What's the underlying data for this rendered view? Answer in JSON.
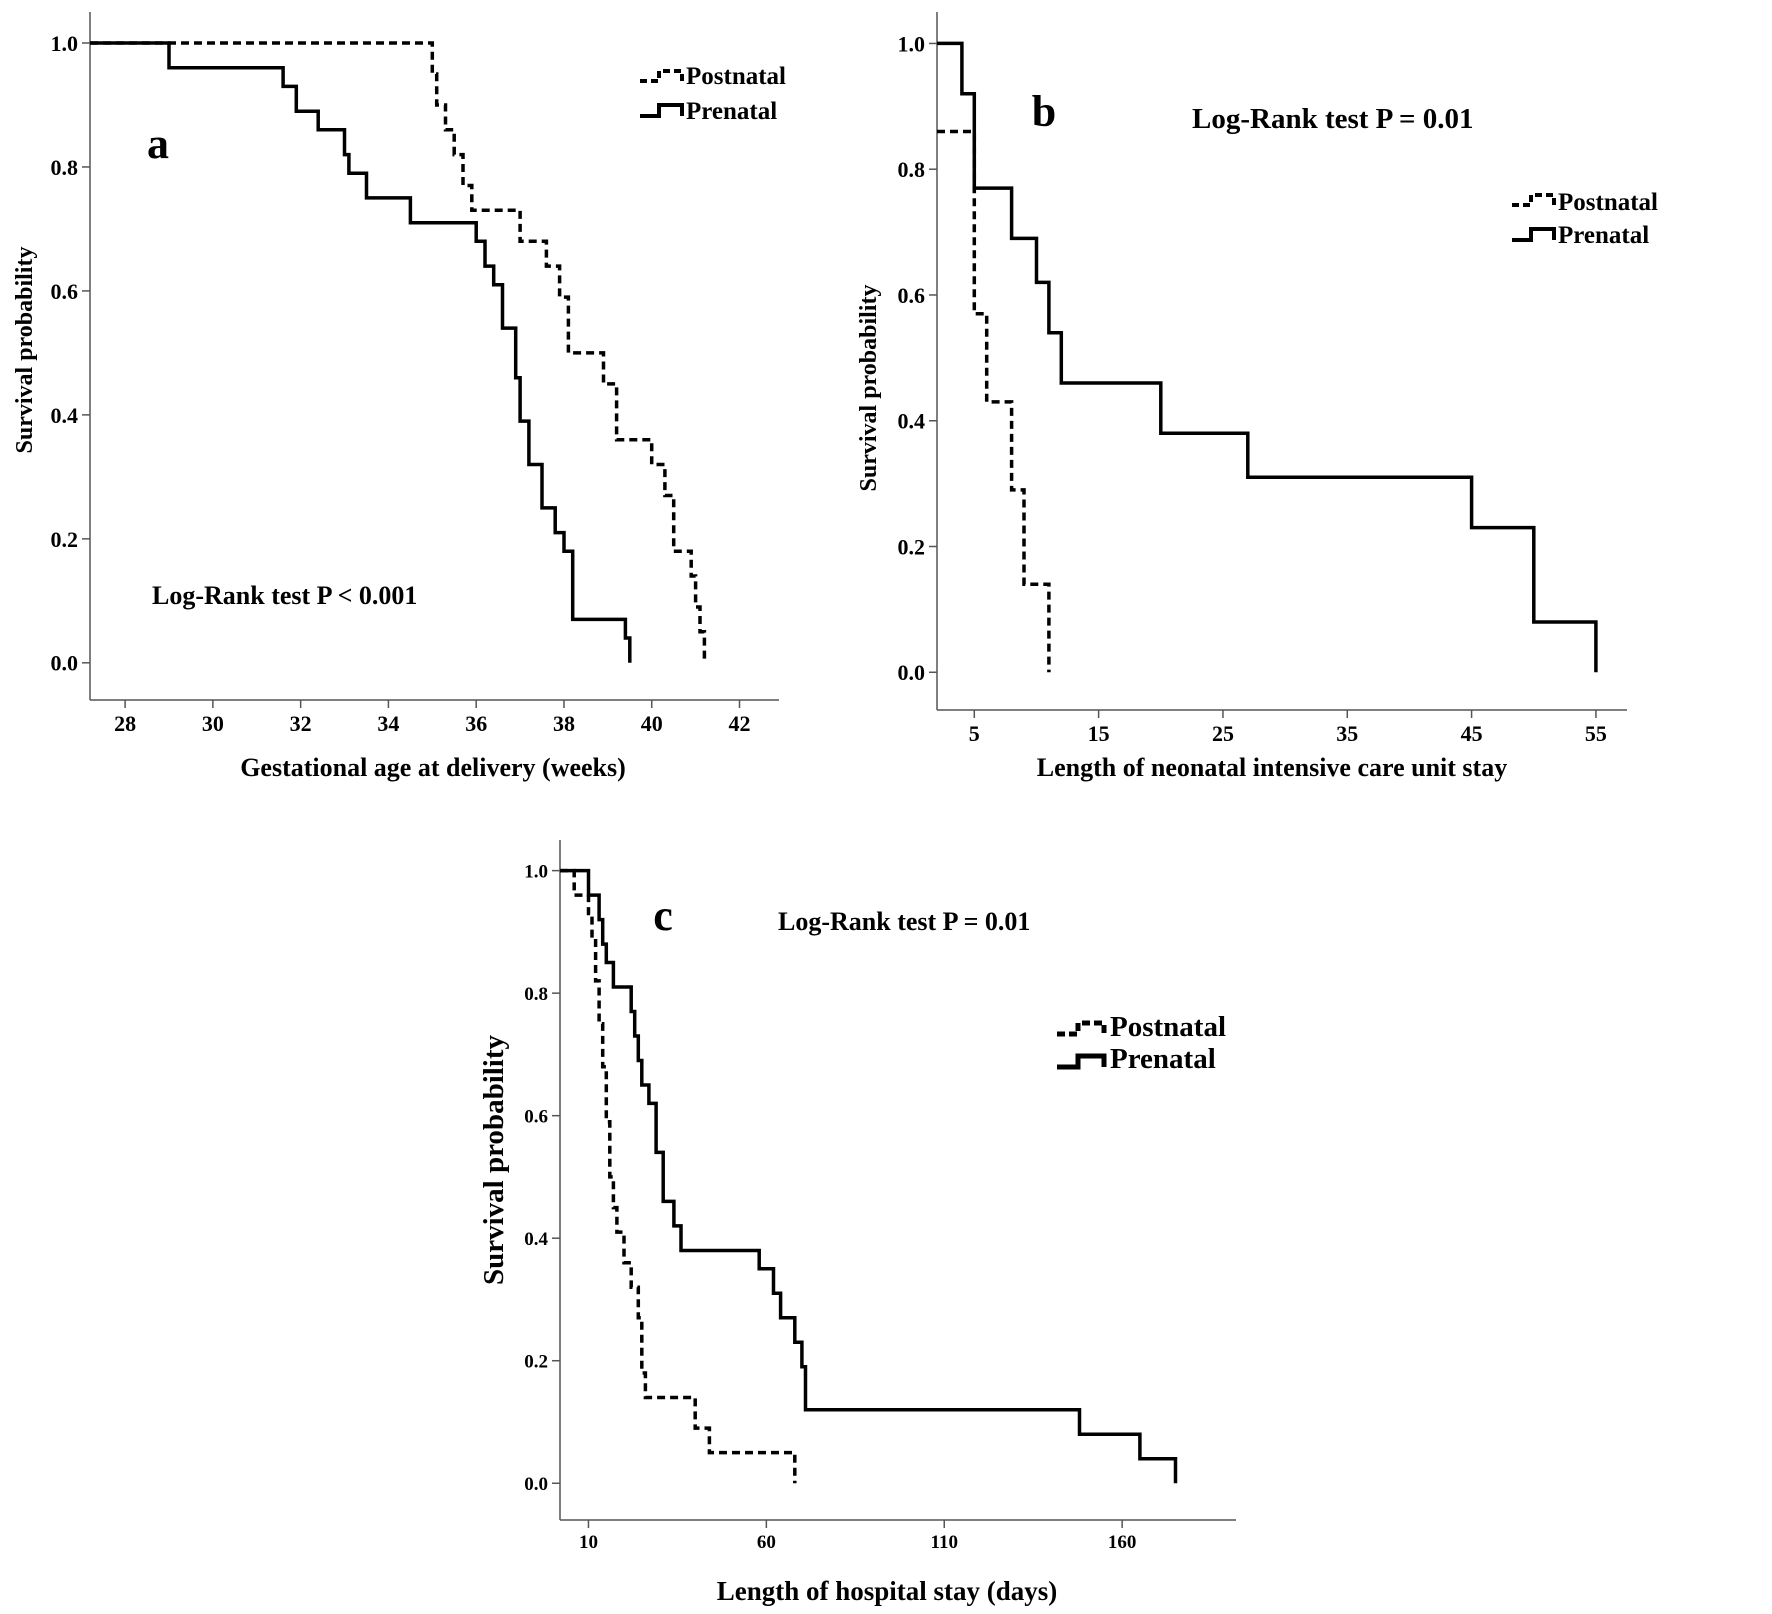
{
  "chart_data": [
    {
      "type": "line",
      "panel_letter": "a",
      "title": "",
      "xlabel": "Gestational age at delivery (weeks)",
      "ylabel": "Survival probability",
      "xlim": [
        27.2,
        42.9
      ],
      "ylim": [
        -0.06,
        1.05
      ],
      "xticks": [
        28,
        30,
        32,
        34,
        36,
        38,
        40,
        42
      ],
      "yticks": [
        0.0,
        0.2,
        0.4,
        0.6,
        0.8,
        1.0
      ],
      "ytick_labels": [
        "0.0",
        "0.2",
        "0.4",
        "0.6",
        "0.8",
        "1.0"
      ],
      "annotation": "Log-Rank test P < 0.001",
      "legend_position": "top-right",
      "series": [
        {
          "name": "Postnatal",
          "style": "dashed",
          "x": [
            27.2,
            35.0,
            35.1,
            35.3,
            35.5,
            35.7,
            35.9,
            36.1,
            36.5,
            37.0,
            37.6,
            37.9,
            38.1,
            38.6,
            38.9,
            39.2,
            39.6,
            40.0,
            40.3,
            40.5,
            40.9,
            41.0,
            41.1,
            41.2
          ],
          "y": [
            1.0,
            0.95,
            0.9,
            0.86,
            0.82,
            0.77,
            0.73,
            0.73,
            0.73,
            0.68,
            0.64,
            0.59,
            0.5,
            0.5,
            0.45,
            0.36,
            0.36,
            0.32,
            0.27,
            0.18,
            0.14,
            0.09,
            0.05,
            0.0
          ]
        },
        {
          "name": "Prenatal",
          "style": "solid",
          "x": [
            27.2,
            29.0,
            31.6,
            31.9,
            32.4,
            33.0,
            33.1,
            33.2,
            33.5,
            34.5,
            36.0,
            36.2,
            36.4,
            36.6,
            36.9,
            37.0,
            37.2,
            37.5,
            37.8,
            38.0,
            38.2,
            39.4,
            39.5
          ],
          "y": [
            1.0,
            0.96,
            0.93,
            0.89,
            0.86,
            0.82,
            0.79,
            0.79,
            0.75,
            0.71,
            0.68,
            0.64,
            0.61,
            0.54,
            0.46,
            0.39,
            0.32,
            0.25,
            0.21,
            0.18,
            0.07,
            0.04,
            0.0
          ]
        }
      ]
    },
    {
      "type": "line",
      "panel_letter": "b",
      "title": "",
      "xlabel": "Length of neonatal intensive care unit stay",
      "ylabel": "Survival probability",
      "xlim": [
        2.0,
        57.5
      ],
      "ylim": [
        -0.06,
        1.05
      ],
      "xticks": [
        5,
        15,
        25,
        35,
        45,
        55
      ],
      "yticks": [
        0.0,
        0.2,
        0.4,
        0.6,
        0.8,
        1.0
      ],
      "ytick_labels": [
        "0.0",
        "0.2",
        "0.4",
        "0.6",
        "0.8",
        "1.0"
      ],
      "annotation": "Log-Rank test P = 0.01",
      "legend_position": "right",
      "series": [
        {
          "name": "Postnatal",
          "style": "dashed",
          "x": [
            2.0,
            5.0,
            6.0,
            8.0,
            9.0,
            10.0,
            11.0
          ],
          "y": [
            0.86,
            0.57,
            0.43,
            0.29,
            0.14,
            0.14,
            0.0
          ]
        },
        {
          "name": "Prenatal",
          "style": "solid",
          "x": [
            2.0,
            4.0,
            5.0,
            8.0,
            10.0,
            11.0,
            12.0,
            20.0,
            27.0,
            45.0,
            50.0,
            55.0
          ],
          "y": [
            1.0,
            0.92,
            0.77,
            0.69,
            0.62,
            0.54,
            0.46,
            0.38,
            0.31,
            0.23,
            0.08,
            0.0
          ]
        }
      ]
    },
    {
      "type": "line",
      "panel_letter": "c",
      "title": "",
      "xlabel": "Length of hospital stay (days)",
      "ylabel": "Survival probability",
      "xlim": [
        2.0,
        192.0
      ],
      "ylim": [
        -0.06,
        1.05
      ],
      "xticks": [
        10,
        60,
        110,
        160
      ],
      "yticks": [
        0.0,
        0.2,
        0.4,
        0.6,
        0.8,
        1.0
      ],
      "ytick_labels": [
        "0.0",
        "0.2",
        "0.4",
        "0.6",
        "0.8",
        "1.0"
      ],
      "annotation": "Log-Rank test P = 0.01",
      "legend_position": "right",
      "series": [
        {
          "name": "Postnatal",
          "style": "dashed",
          "x": [
            2.0,
            6.0,
            10.0,
            11.0,
            12.0,
            13.0,
            14.0,
            15.0,
            16.0,
            17.0,
            18.0,
            19.0,
            20.0,
            22.0,
            24.0,
            25.0,
            26.0,
            28.0,
            29.0,
            36.0,
            40.0,
            44.0,
            48.0,
            53.0,
            66.0,
            68.0
          ],
          "y": [
            1.0,
            0.96,
            0.93,
            0.89,
            0.82,
            0.75,
            0.68,
            0.59,
            0.5,
            0.45,
            0.41,
            0.41,
            0.36,
            0.32,
            0.27,
            0.18,
            0.14,
            0.14,
            0.14,
            0.14,
            0.09,
            0.05,
            0.05,
            0.05,
            0.05,
            0.0
          ]
        },
        {
          "name": "Prenatal",
          "style": "solid",
          "x": [
            2.0,
            10.0,
            13.0,
            14.0,
            15.0,
            17.0,
            22.0,
            23.0,
            24.0,
            25.0,
            27.0,
            29.0,
            31.0,
            34.0,
            36.0,
            58.0,
            62.0,
            64.0,
            68.0,
            70.0,
            71.0,
            148.0,
            165.0,
            170.0,
            175.0
          ],
          "y": [
            1.0,
            0.96,
            0.92,
            0.88,
            0.85,
            0.81,
            0.77,
            0.73,
            0.69,
            0.65,
            0.62,
            0.54,
            0.46,
            0.42,
            0.38,
            0.35,
            0.31,
            0.27,
            0.23,
            0.19,
            0.12,
            0.08,
            0.04,
            0.04,
            0.0
          ]
        }
      ]
    }
  ]
}
